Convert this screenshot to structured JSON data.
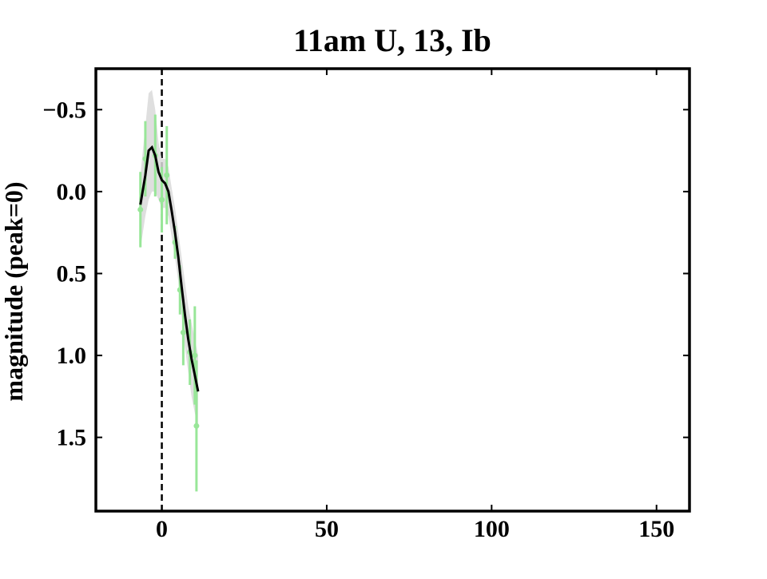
{
  "chart_data": {
    "type": "line",
    "title": "11am U, 13, Ib",
    "ylabel": "magnitude (peak=0)",
    "xlim": [
      -20,
      160
    ],
    "ylim": [
      -0.75,
      1.95
    ],
    "y_inverted": true,
    "xticks": [
      0,
      50,
      100,
      150
    ],
    "yticks": [
      {
        "value": -0.5,
        "label": "−0.5"
      },
      {
        "value": 0,
        "label": "0.0"
      },
      0.5,
      {
        "value": 1,
        "label": "1.0"
      },
      1.5
    ],
    "vline": 0,
    "band": {
      "color": "#d9d9d9",
      "x": [
        -6.5,
        -5,
        -4,
        -3,
        -2,
        -1,
        0,
        1,
        2,
        3,
        4,
        5,
        6,
        7,
        8,
        9,
        10,
        11
      ],
      "low": [
        -0.1,
        -0.4,
        -0.6,
        -0.62,
        -0.5,
        -0.3,
        -0.2,
        -0.2,
        -0.15,
        -0.02,
        0.1,
        0.25,
        0.4,
        0.55,
        0.7,
        0.8,
        0.9,
        1.0
      ],
      "high": [
        0.35,
        0.15,
        0.05,
        0.0,
        0.0,
        0.05,
        0.1,
        0.1,
        0.15,
        0.28,
        0.4,
        0.55,
        0.75,
        0.95,
        1.1,
        1.25,
        1.35,
        1.45
      ]
    },
    "curve": {
      "color": "#000000",
      "x": [
        -6.5,
        -5,
        -4,
        -3,
        -2,
        -1,
        0,
        1,
        2,
        3,
        4,
        5,
        6,
        7,
        8,
        9,
        10,
        11
      ],
      "values": [
        0.08,
        -0.1,
        -0.25,
        -0.27,
        -0.22,
        -0.12,
        -0.07,
        -0.05,
        0.0,
        0.12,
        0.25,
        0.4,
        0.58,
        0.75,
        0.9,
        1.02,
        1.12,
        1.22
      ]
    },
    "points": {
      "color": "#98e698",
      "x": [
        -6.5,
        -5,
        -2,
        0,
        1.5,
        4,
        5.5,
        6.5,
        8.5,
        10,
        10.5
      ],
      "values": [
        0.11,
        -0.2,
        -0.22,
        0.05,
        -0.1,
        0.31,
        0.6,
        0.86,
        0.98,
        1.0,
        1.43
      ],
      "errors": [
        0.23,
        0.23,
        0.25,
        0.2,
        0.3,
        0.1,
        0.15,
        0.2,
        0.2,
        0.3,
        0.4
      ]
    }
  }
}
